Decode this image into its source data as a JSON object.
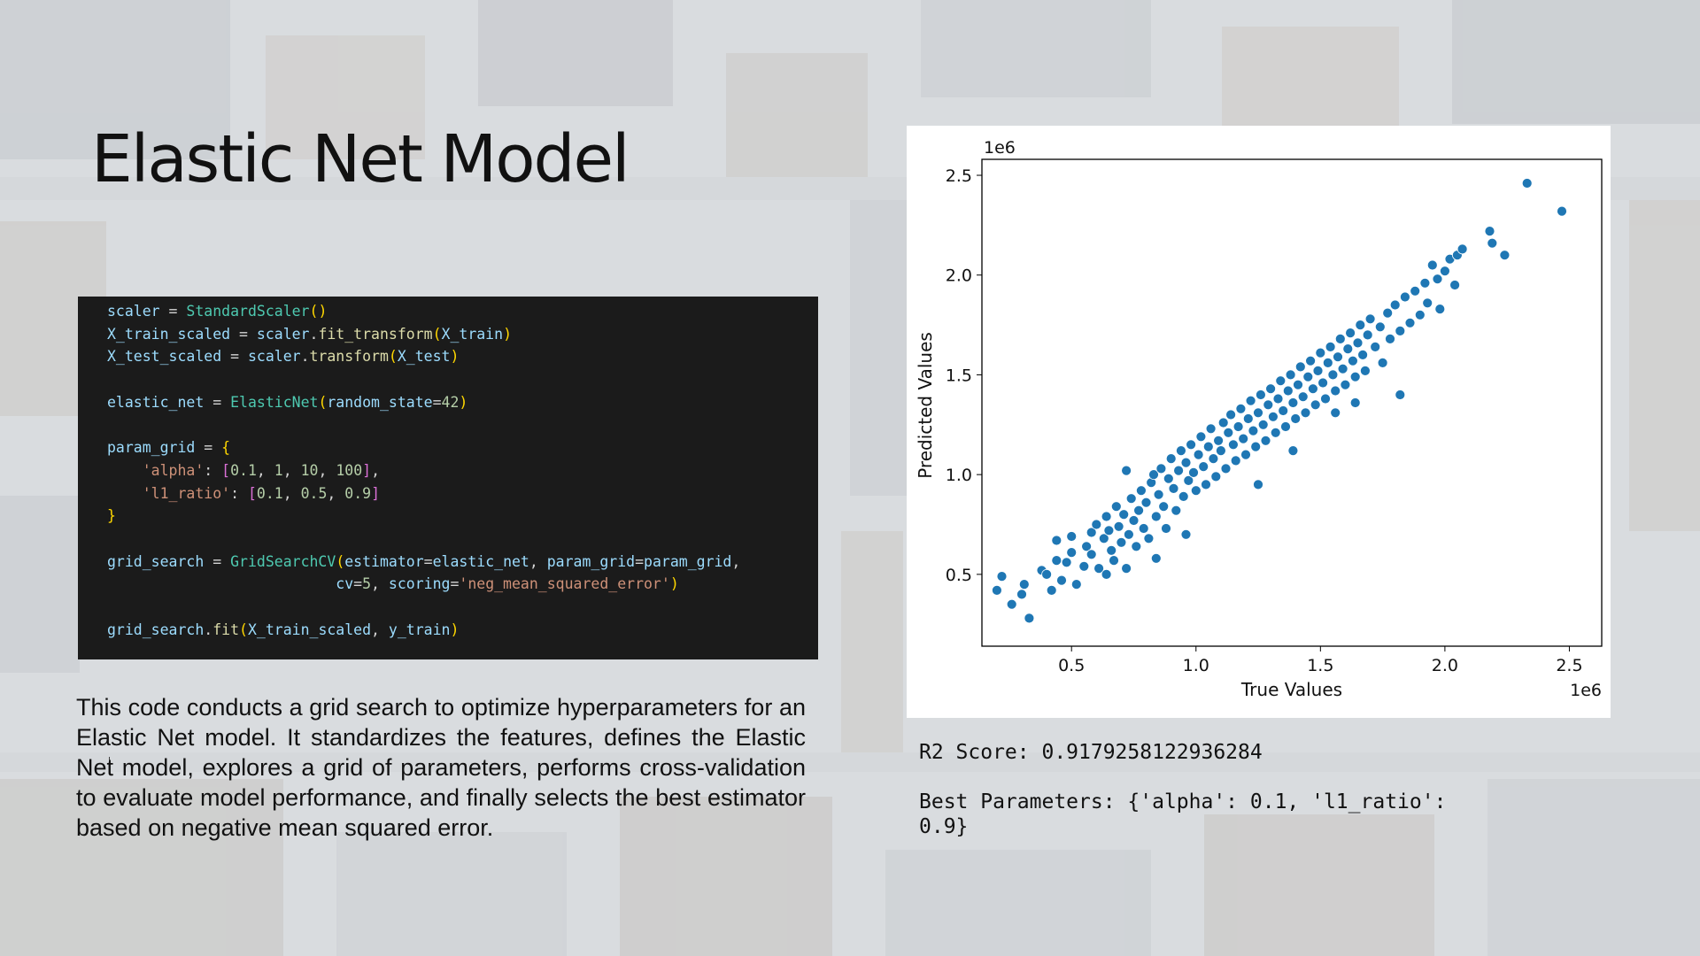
{
  "slide": {
    "title": "Elastic Net Model",
    "description": "This code conducts a grid search to optimize hyperparameters for an Elastic Net model. It standardizes the features, defines the Elastic Net model, explores a grid of parameters, performs cross-validation to evaluate model performance, and finally selects the best estimator based on negative mean squared error."
  },
  "code": {
    "lines": [
      "scaler = StandardScaler()",
      "X_train_scaled = scaler.fit_transform(X_train)",
      "X_test_scaled = scaler.transform(X_test)",
      "",
      "elastic_net = ElasticNet(random_state=42)",
      "",
      "param_grid = {",
      "    'alpha': [0.1, 1, 10, 100],",
      "    'l1_ratio': [0.1, 0.5, 0.9]",
      "}",
      "",
      "grid_search = GridSearchCV(estimator=elastic_net, param_grid=param_grid,",
      "                          cv=5, scoring='neg_mean_squared_error')",
      "",
      "grid_search.fit(X_train_scaled, y_train)"
    ]
  },
  "output": {
    "r2": "R2 Score: 0.9179258122936284",
    "best_params_line1": "Best Parameters: {'alpha': 0.1, 'l1_ratio':",
    "best_params_line2": "0.9}"
  },
  "colors": {
    "point": "#1f77b4",
    "code_bg": "#1b1b1b"
  },
  "chart_data": {
    "type": "scatter",
    "xlabel": "True Values",
    "ylabel": "Predicted Values",
    "x_offset_text": "1e6",
    "y_offset_text": "1e6",
    "xlim": [
      0.14,
      2.63
    ],
    "ylim": [
      0.14,
      2.58
    ],
    "xticks": [
      0.5,
      1.0,
      1.5,
      2.0,
      2.5
    ],
    "xtick_labels": [
      "0.5",
      "1.0",
      "1.5",
      "2.0",
      "2.5"
    ],
    "yticks": [
      0.5,
      1.0,
      1.5,
      2.0,
      2.5
    ],
    "ytick_labels": [
      "0.5",
      "1.0",
      "1.5",
      "2.0",
      "2.5"
    ],
    "grid": false,
    "units": "1e6",
    "points": [
      [
        0.2,
        0.42
      ],
      [
        0.22,
        0.49
      ],
      [
        0.26,
        0.35
      ],
      [
        0.3,
        0.4
      ],
      [
        0.31,
        0.45
      ],
      [
        0.33,
        0.28
      ],
      [
        0.38,
        0.52
      ],
      [
        0.4,
        0.5
      ],
      [
        0.42,
        0.42
      ],
      [
        0.44,
        0.57
      ],
      [
        0.44,
        0.67
      ],
      [
        0.46,
        0.47
      ],
      [
        0.48,
        0.56
      ],
      [
        0.5,
        0.61
      ],
      [
        0.5,
        0.69
      ],
      [
        0.52,
        0.45
      ],
      [
        0.55,
        0.54
      ],
      [
        0.56,
        0.64
      ],
      [
        0.58,
        0.71
      ],
      [
        0.58,
        0.6
      ],
      [
        0.6,
        0.75
      ],
      [
        0.61,
        0.53
      ],
      [
        0.63,
        0.68
      ],
      [
        0.64,
        0.79
      ],
      [
        0.65,
        0.72
      ],
      [
        0.66,
        0.62
      ],
      [
        0.67,
        0.57
      ],
      [
        0.68,
        0.84
      ],
      [
        0.69,
        0.74
      ],
      [
        0.7,
        0.66
      ],
      [
        0.71,
        0.8
      ],
      [
        0.72,
        0.53
      ],
      [
        0.73,
        0.7
      ],
      [
        0.74,
        0.88
      ],
      [
        0.75,
        0.77
      ],
      [
        0.76,
        0.64
      ],
      [
        0.77,
        0.82
      ],
      [
        0.78,
        0.92
      ],
      [
        0.79,
        0.73
      ],
      [
        0.8,
        0.86
      ],
      [
        0.81,
        0.68
      ],
      [
        0.82,
        0.96
      ],
      [
        0.83,
        1.0
      ],
      [
        0.84,
        0.79
      ],
      [
        0.85,
        0.9
      ],
      [
        0.86,
        1.03
      ],
      [
        0.87,
        0.84
      ],
      [
        0.88,
        0.73
      ],
      [
        0.89,
        0.98
      ],
      [
        0.9,
        1.08
      ],
      [
        0.91,
        0.93
      ],
      [
        0.92,
        0.82
      ],
      [
        0.93,
        1.02
      ],
      [
        0.94,
        1.12
      ],
      [
        0.95,
        0.89
      ],
      [
        0.96,
        1.06
      ],
      [
        0.97,
        0.97
      ],
      [
        0.98,
        1.15
      ],
      [
        0.99,
        1.01
      ],
      [
        1.0,
        0.92
      ],
      [
        1.01,
        1.1
      ],
      [
        1.02,
        1.19
      ],
      [
        1.03,
        1.04
      ],
      [
        1.04,
        0.95
      ],
      [
        1.05,
        1.14
      ],
      [
        1.06,
        1.23
      ],
      [
        1.07,
        1.08
      ],
      [
        1.08,
        0.99
      ],
      [
        1.09,
        1.17
      ],
      [
        1.1,
        1.12
      ],
      [
        1.11,
        1.26
      ],
      [
        1.12,
        1.03
      ],
      [
        1.13,
        1.21
      ],
      [
        1.14,
        1.3
      ],
      [
        1.15,
        1.15
      ],
      [
        1.16,
        1.07
      ],
      [
        1.17,
        1.24
      ],
      [
        1.18,
        1.33
      ],
      [
        1.19,
        1.18
      ],
      [
        1.2,
        1.1
      ],
      [
        1.21,
        1.28
      ],
      [
        1.22,
        1.37
      ],
      [
        1.23,
        1.22
      ],
      [
        1.24,
        1.14
      ],
      [
        1.25,
        1.31
      ],
      [
        1.26,
        1.4
      ],
      [
        1.27,
        1.25
      ],
      [
        1.28,
        1.17
      ],
      [
        1.29,
        1.35
      ],
      [
        1.3,
        1.43
      ],
      [
        1.31,
        1.29
      ],
      [
        1.32,
        1.21
      ],
      [
        1.33,
        1.38
      ],
      [
        1.34,
        1.47
      ],
      [
        1.35,
        1.32
      ],
      [
        1.36,
        1.24
      ],
      [
        1.37,
        1.42
      ],
      [
        1.38,
        1.5
      ],
      [
        1.39,
        1.36
      ],
      [
        1.4,
        1.28
      ],
      [
        1.41,
        1.45
      ],
      [
        1.42,
        1.54
      ],
      [
        1.43,
        1.39
      ],
      [
        1.44,
        1.31
      ],
      [
        1.45,
        1.49
      ],
      [
        1.46,
        1.57
      ],
      [
        1.47,
        1.43
      ],
      [
        1.48,
        1.35
      ],
      [
        1.49,
        1.52
      ],
      [
        1.5,
        1.61
      ],
      [
        1.51,
        1.46
      ],
      [
        1.52,
        1.38
      ],
      [
        1.53,
        1.56
      ],
      [
        1.54,
        1.64
      ],
      [
        1.55,
        1.5
      ],
      [
        1.56,
        1.42
      ],
      [
        1.57,
        1.59
      ],
      [
        1.58,
        1.68
      ],
      [
        1.59,
        1.53
      ],
      [
        1.6,
        1.45
      ],
      [
        1.61,
        1.63
      ],
      [
        1.62,
        1.71
      ],
      [
        1.63,
        1.57
      ],
      [
        1.64,
        1.49
      ],
      [
        1.65,
        1.66
      ],
      [
        1.66,
        1.75
      ],
      [
        1.67,
        1.6
      ],
      [
        1.68,
        1.52
      ],
      [
        1.69,
        1.7
      ],
      [
        1.7,
        1.78
      ],
      [
        1.72,
        1.64
      ],
      [
        1.74,
        1.74
      ],
      [
        1.75,
        1.56
      ],
      [
        1.77,
        1.81
      ],
      [
        1.78,
        1.68
      ],
      [
        1.8,
        1.85
      ],
      [
        1.82,
        1.72
      ],
      [
        1.84,
        1.89
      ],
      [
        1.86,
        1.76
      ],
      [
        1.88,
        1.92
      ],
      [
        1.9,
        1.8
      ],
      [
        1.92,
        1.96
      ],
      [
        1.93,
        1.86
      ],
      [
        1.95,
        2.05
      ],
      [
        1.97,
        1.98
      ],
      [
        1.98,
        1.83
      ],
      [
        2.0,
        2.02
      ],
      [
        2.02,
        2.08
      ],
      [
        2.04,
        1.95
      ],
      [
        2.05,
        2.1
      ],
      [
        2.07,
        2.13
      ],
      [
        1.82,
        1.4
      ],
      [
        1.64,
        1.36
      ],
      [
        0.72,
        1.02
      ],
      [
        0.64,
        0.5
      ],
      [
        1.39,
        1.12
      ],
      [
        1.25,
        0.95
      ],
      [
        0.96,
        0.7
      ],
      [
        1.56,
        1.31
      ],
      [
        0.84,
        0.58
      ],
      [
        2.18,
        2.22
      ],
      [
        2.19,
        2.16
      ],
      [
        2.24,
        2.1
      ],
      [
        2.33,
        2.46
      ],
      [
        2.47,
        2.32
      ]
    ]
  }
}
